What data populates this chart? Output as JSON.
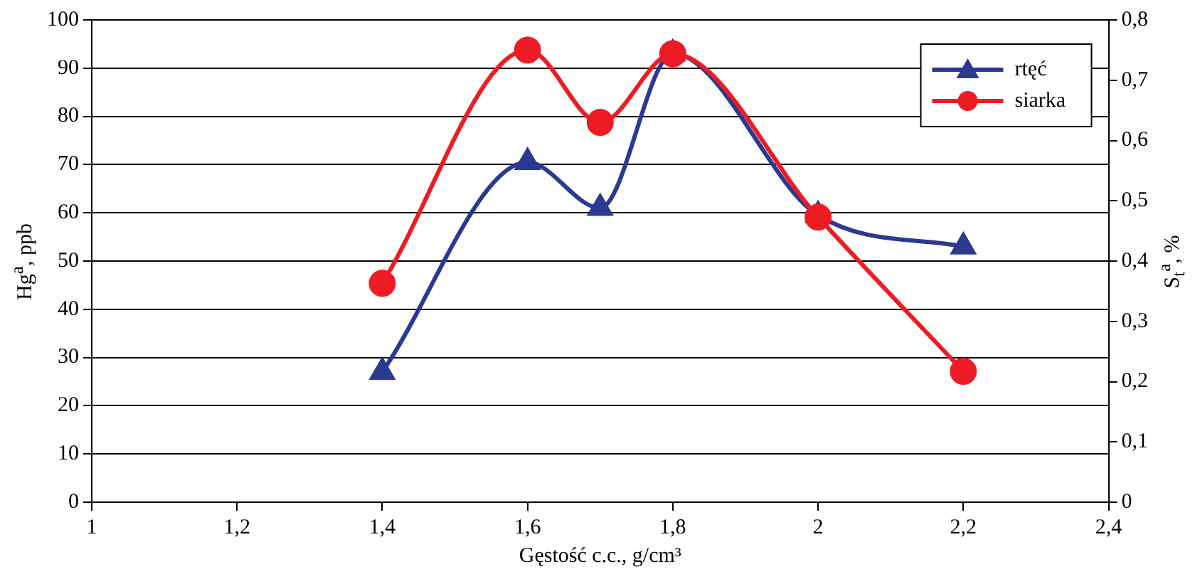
{
  "chart_data": {
    "type": "line",
    "xlabel": "Gęstość c.c., g/cm³",
    "ylabel": "Hg$^{a}$, ppb",
    "y2label": "S$_{t}$$^{a}$, %",
    "x": [
      1.4,
      1.6,
      1.7,
      1.8,
      2.0,
      2.2
    ],
    "series": [
      {
        "name": "rtęć",
        "color": "#2b3990",
        "marker": "triangle",
        "values": [
          27,
          70.5,
          61,
          93,
          59.5,
          53
        ]
      },
      {
        "name": "siarka",
        "color": "#ed1c24",
        "marker": "circle",
        "axis": "y2",
        "values": [
          0.363,
          0.75,
          0.63,
          0.744,
          0.473,
          0.217
        ]
      }
    ],
    "xlim": [
      1,
      2.4
    ],
    "xticks": [
      1,
      {
        "value": 1.2,
        "label": "1,2"
      },
      {
        "value": 1.4,
        "label": "1,4"
      },
      {
        "value": 1.6,
        "label": "1,6"
      },
      {
        "value": 1.8,
        "label": "1,8"
      },
      2,
      {
        "value": 2.2,
        "label": "2,2"
      },
      {
        "value": 2.4,
        "label": "2,4"
      }
    ],
    "ylim": [
      0,
      100
    ],
    "yticks": [
      0,
      10,
      20,
      30,
      40,
      50,
      60,
      70,
      80,
      90,
      100
    ],
    "y2lim": [
      0,
      0.8
    ],
    "y2ticks": [
      0,
      {
        "value": 0.1,
        "label": "0,1"
      },
      {
        "value": 0.2,
        "label": "0,2"
      },
      {
        "value": 0.3,
        "label": "0,3"
      },
      {
        "value": 0.4,
        "label": "0,4"
      },
      {
        "value": 0.5,
        "label": "0,5"
      },
      {
        "value": 0.6,
        "label": "0,6"
      },
      {
        "value": 0.7,
        "label": "0,7"
      },
      {
        "value": 0.8,
        "label": "0,8"
      }
    ],
    "grid": "y",
    "legend": "top right",
    "line_style": "solid"
  }
}
